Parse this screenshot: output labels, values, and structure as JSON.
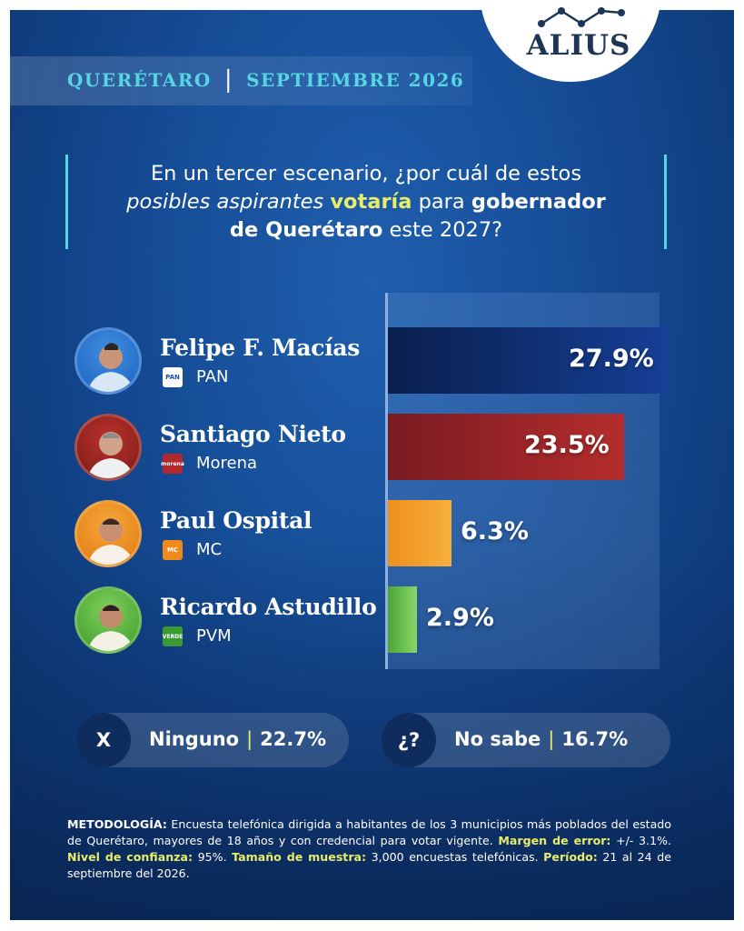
{
  "header": {
    "state": "QUERÉTARO",
    "separator": "|",
    "date": "SEPTIEMBRE 2026"
  },
  "brand": {
    "name": "ALIUS"
  },
  "question": {
    "line1": "En un tercer escenario, ¿por cuál de estos",
    "line2_em": "posibles aspirantes",
    "line2_hl": "votaría",
    "line2_plain": "para",
    "line2_strong": "gobernador",
    "line3_strong": "de Querétaro",
    "line3_plain": "este 2027?"
  },
  "chart_data": {
    "type": "bar",
    "orientation": "horizontal",
    "categories": [
      "Felipe F. Macías",
      "Santiago Nieto",
      "Paul Ospital",
      "Ricardo Astudillo"
    ],
    "parties": [
      "PAN",
      "Morena",
      "MC",
      "PVM"
    ],
    "values": [
      27.9,
      23.5,
      6.3,
      2.9
    ],
    "value_labels": [
      "27.9%",
      "23.5%",
      "6.3%",
      "2.9%"
    ],
    "unit": "%",
    "xlim": [
      0,
      27.9
    ],
    "colors": [
      "#0e2a66",
      "#a52a2a",
      "#f39a1e",
      "#6cc24a"
    ],
    "extras": [
      {
        "symbol": "X",
        "label": "Ninguno",
        "value": 22.7,
        "value_label": "22.7%"
      },
      {
        "symbol": "¿?",
        "label": "No sabe",
        "value": 16.7,
        "value_label": "16.7%"
      }
    ]
  },
  "party_logos": {
    "pan": "PAN",
    "morena": "morena",
    "mc": "MC",
    "pvm": "VERDE"
  },
  "separator": "|",
  "methodology": {
    "k1": "METODOLOGÍA:",
    "t1": "Encuesta telefónica dirigida a habitantes de los 3 municipios más poblados del estado de Querétaro, mayores de 18 años y con credencial para votar vigente.",
    "k2": "Margen de error:",
    "t2": "+/- 3.1%.",
    "k3": "Nivel de confianza:",
    "t3": "95%.",
    "k4": "Tamaño de muestra:",
    "t4": "3,000 encuestas telefónicas.",
    "k5": "Período:",
    "t5": "21 al 24 de septiembre del 2026."
  }
}
